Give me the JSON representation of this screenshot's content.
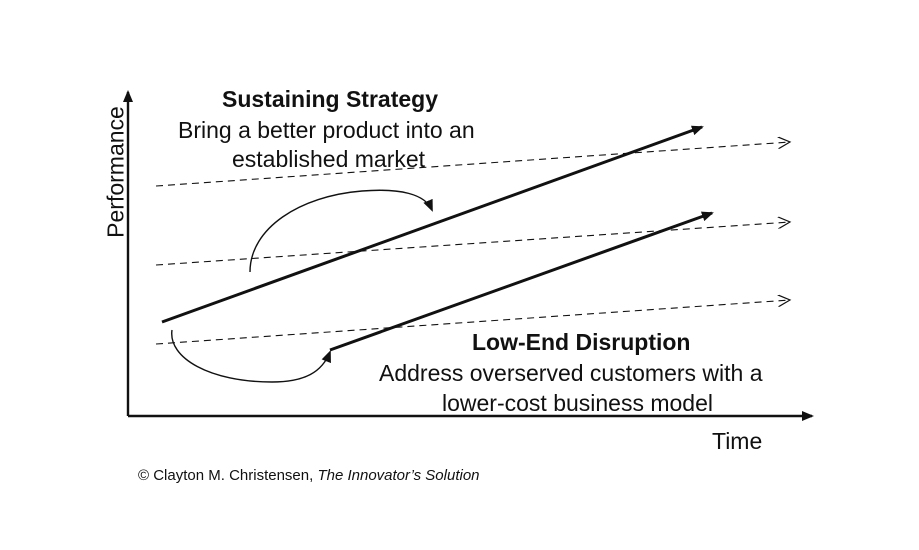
{
  "axes": {
    "y_label": "Performance",
    "x_label": "Time"
  },
  "sustaining": {
    "title": "Sustaining Strategy",
    "line1": "Bring a better product into an",
    "line2": "established market"
  },
  "disruption": {
    "title": "Low-End Disruption",
    "line1": "Address overserved customers with a",
    "line2": "lower-cost business model"
  },
  "credit": {
    "prefix": "© Clayton M. Christensen, ",
    "work": "The Innovator’s Solution"
  },
  "colors": {
    "ink": "#111111",
    "background": "#ffffff"
  }
}
